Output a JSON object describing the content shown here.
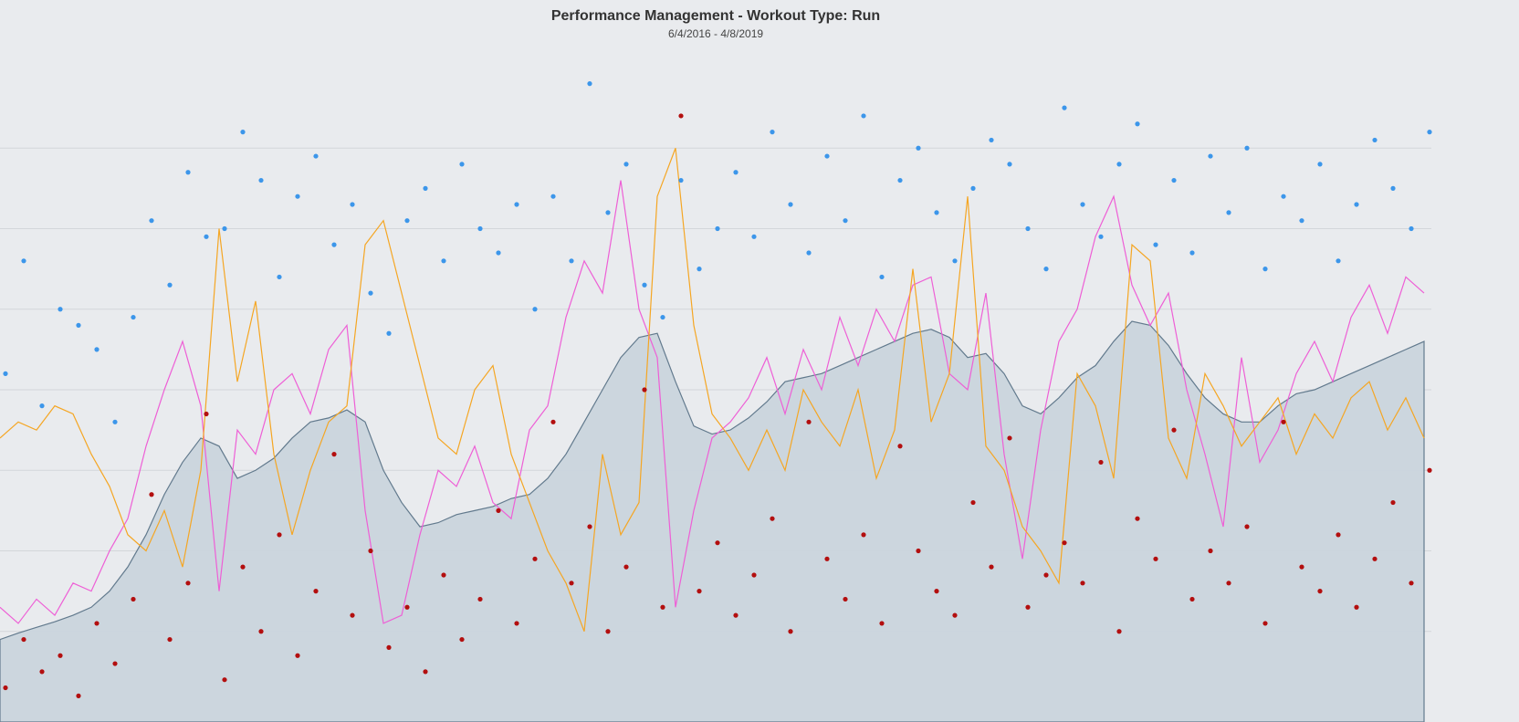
{
  "chart_data": {
    "type": "combo",
    "title": "Performance Management - Workout Type: Run",
    "subtitle": "6/4/2016 - 4/8/2019",
    "x": [
      0,
      1,
      2,
      3,
      4,
      5,
      6,
      7,
      8,
      9,
      10,
      11,
      12,
      13,
      14,
      15,
      16,
      17,
      18,
      19,
      20,
      21,
      22,
      23,
      24,
      25,
      26,
      27,
      28,
      29,
      30,
      31,
      32,
      33,
      34,
      35,
      36,
      37,
      38,
      39,
      40,
      41,
      42,
      43,
      44,
      45,
      46,
      47,
      48,
      49,
      50,
      51,
      52,
      53,
      54,
      55,
      56,
      57,
      58,
      59,
      60,
      61,
      62,
      63,
      64,
      65,
      66,
      67,
      68,
      69,
      70,
      71,
      72,
      73,
      74,
      75,
      76,
      77,
      78
    ],
    "xlim": [
      0,
      78.4
    ],
    "ylim": [
      0,
      8
    ],
    "yticks": [
      1,
      2,
      3,
      4,
      5,
      6,
      7
    ],
    "grid": true,
    "series": [
      {
        "type": "area",
        "color": "#5b7488",
        "fill": "#cbd5de",
        "values": [
          0.9,
          0.98,
          1.05,
          1.12,
          1.2,
          1.3,
          1.5,
          1.8,
          2.2,
          2.7,
          3.1,
          3.4,
          3.3,
          2.9,
          3.0,
          3.15,
          3.4,
          3.6,
          3.65,
          3.75,
          3.6,
          3.0,
          2.6,
          2.3,
          2.35,
          2.45,
          2.5,
          2.55,
          2.65,
          2.7,
          2.9,
          3.2,
          3.6,
          4.0,
          4.4,
          4.65,
          4.7,
          4.1,
          3.55,
          3.45,
          3.5,
          3.65,
          3.85,
          4.1,
          4.15,
          4.2,
          4.3,
          4.4,
          4.5,
          4.6,
          4.7,
          4.75,
          4.65,
          4.4,
          4.45,
          4.2,
          3.8,
          3.7,
          3.9,
          4.15,
          4.3,
          4.6,
          4.85,
          4.8,
          4.55,
          4.2,
          3.9,
          3.7,
          3.6,
          3.6,
          3.8,
          3.95,
          4.0,
          4.1,
          4.2,
          4.3,
          4.4,
          4.5,
          4.6
        ]
      },
      {
        "type": "line",
        "color": "#ee5fd6",
        "values": [
          1.3,
          1.1,
          1.4,
          1.2,
          1.6,
          1.5,
          2.0,
          2.4,
          3.3,
          4.0,
          4.6,
          3.8,
          1.5,
          3.5,
          3.2,
          4.0,
          4.2,
          3.7,
          4.5,
          4.8,
          2.5,
          1.1,
          1.2,
          2.2,
          3.0,
          2.8,
          3.3,
          2.6,
          2.4,
          3.5,
          3.8,
          4.9,
          5.6,
          5.2,
          6.6,
          5.0,
          4.4,
          1.3,
          2.5,
          3.4,
          3.6,
          3.9,
          4.4,
          3.7,
          4.5,
          4.0,
          4.9,
          4.3,
          5.0,
          4.6,
          5.3,
          5.4,
          4.2,
          4.0,
          5.2,
          3.2,
          1.9,
          3.5,
          4.6,
          5.0,
          5.9,
          6.4,
          5.3,
          4.8,
          5.2,
          4.0,
          3.2,
          2.3,
          4.4,
          3.1,
          3.5,
          4.2,
          4.6,
          4.1,
          4.9,
          5.3,
          4.7,
          5.4,
          5.2
        ]
      },
      {
        "type": "line",
        "color": "#f5a623",
        "values": [
          3.4,
          3.6,
          3.5,
          3.8,
          3.7,
          3.2,
          2.8,
          2.2,
          2.0,
          2.5,
          1.8,
          3.0,
          6.0,
          4.1,
          5.1,
          3.2,
          2.2,
          3.0,
          3.6,
          3.8,
          5.8,
          6.1,
          5.2,
          4.3,
          3.4,
          3.2,
          4.0,
          4.3,
          3.2,
          2.6,
          2.0,
          1.6,
          1.0,
          3.2,
          2.2,
          2.6,
          6.4,
          7.0,
          4.8,
          3.7,
          3.4,
          3.0,
          3.5,
          3.0,
          4.0,
          3.6,
          3.3,
          4.0,
          2.9,
          3.5,
          5.5,
          3.6,
          4.2,
          6.4,
          3.3,
          3.0,
          2.3,
          2.0,
          1.6,
          4.2,
          3.8,
          2.9,
          5.8,
          5.6,
          3.4,
          2.9,
          4.2,
          3.8,
          3.3,
          3.6,
          3.9,
          3.2,
          3.7,
          3.4,
          3.9,
          4.1,
          3.5,
          3.9,
          3.4
        ]
      },
      {
        "type": "scatter",
        "color": "#3c96ea",
        "values": [
          4.2,
          5.6,
          3.8,
          5.0,
          4.8,
          4.5,
          3.6,
          4.9,
          6.1,
          5.3,
          6.7,
          5.9,
          6.0,
          7.2,
          6.6,
          5.4,
          6.4,
          6.9,
          5.8,
          6.3,
          5.2,
          4.7,
          6.1,
          6.5,
          5.6,
          6.8,
          6.0,
          5.7,
          6.3,
          5.0,
          6.4,
          5.6,
          7.8,
          6.2,
          6.8,
          5.3,
          4.9,
          6.6,
          5.5,
          6.0,
          6.7,
          5.9,
          7.2,
          6.3,
          5.7,
          6.9,
          6.1,
          7.4,
          5.4,
          6.6,
          7.0,
          6.2,
          5.6,
          6.5,
          7.1,
          6.8,
          6.0,
          5.5,
          7.5,
          6.3,
          5.9,
          6.8,
          7.3,
          5.8,
          6.6,
          5.7,
          6.9,
          6.2,
          7.0,
          5.5,
          6.4,
          6.1,
          6.8,
          5.6,
          6.3,
          7.1,
          6.5,
          6.0,
          7.2
        ]
      },
      {
        "type": "scatter",
        "color": "#b30f0f",
        "values": [
          0.3,
          0.9,
          0.5,
          0.7,
          0.2,
          1.1,
          0.6,
          1.4,
          2.7,
          0.9,
          1.6,
          3.7,
          0.4,
          1.8,
          1.0,
          2.2,
          0.7,
          1.5,
          3.2,
          1.2,
          2.0,
          0.8,
          1.3,
          0.5,
          1.7,
          0.9,
          1.4,
          2.5,
          1.1,
          1.9,
          3.6,
          1.6,
          2.3,
          1.0,
          1.8,
          4.0,
          1.3,
          7.4,
          1.5,
          2.1,
          1.2,
          1.7,
          2.4,
          1.0,
          3.6,
          1.9,
          1.4,
          2.2,
          1.1,
          3.3,
          2.0,
          1.5,
          1.2,
          2.6,
          1.8,
          3.4,
          1.3,
          1.7,
          2.1,
          1.6,
          3.1,
          1.0,
          2.4,
          1.9,
          3.5,
          1.4,
          2.0,
          1.6,
          2.3,
          1.1,
          3.6,
          1.8,
          1.5,
          2.2,
          1.3,
          1.9,
          2.6,
          1.6,
          3.0
        ]
      }
    ]
  }
}
